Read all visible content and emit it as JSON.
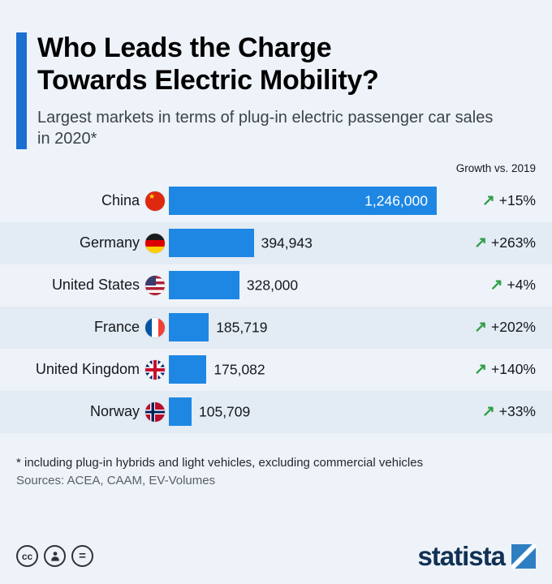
{
  "title_line1": "Who Leads the Charge",
  "title_line2": "Towards Electric Mobility?",
  "subtitle": "Largest markets in terms of plug-in electric passenger car sales in 2020*",
  "growth_header": "Growth vs. 2019",
  "rows": [
    {
      "country": "China",
      "value": "1,246,000",
      "growth": "+15%",
      "flag_icon": "china-flag"
    },
    {
      "country": "Germany",
      "value": "394,943",
      "growth": "+263%",
      "flag_icon": "germany-flag"
    },
    {
      "country": "United States",
      "value": "328,000",
      "growth": "+4%",
      "flag_icon": "us-flag"
    },
    {
      "country": "France",
      "value": "185,719",
      "growth": "+202%",
      "flag_icon": "france-flag"
    },
    {
      "country": "United Kingdom",
      "value": "175,082",
      "growth": "+140%",
      "flag_icon": "uk-flag"
    },
    {
      "country": "Norway",
      "value": "105,709",
      "growth": "+33%",
      "flag_icon": "norway-flag"
    }
  ],
  "icons": {
    "growth_arrow": "↗",
    "cc": "cc",
    "no_derivatives": "="
  },
  "footnote": "* including plug-in hybrids and light vehicles, excluding commercial vehicles",
  "sources": "Sources: ACEA, CAAM, EV-Volumes",
  "brand": {
    "wordmark": "statista"
  },
  "colors": {
    "background": "#eef3f9",
    "row_stripe": "#e3ebf4",
    "bar": "#1e87e4",
    "accent_bar": "#1b6fd1",
    "growth_arrow_green": "#2f9e44",
    "wordmark_navy": "#103154"
  },
  "chart_data": {
    "type": "bar",
    "orientation": "horizontal",
    "title": "Who Leads the Charge Towards Electric Mobility?",
    "subtitle": "Largest markets in terms of plug-in electric passenger car sales in 2020*",
    "categories": [
      "China",
      "Germany",
      "United States",
      "France",
      "United Kingdom",
      "Norway"
    ],
    "values": [
      1246000,
      394943,
      328000,
      185719,
      175082,
      105709
    ],
    "value_labels": [
      "1,246,000",
      "394,943",
      "328,000",
      "185,719",
      "175,082",
      "105,709"
    ],
    "growth_vs_2019": [
      "+15%",
      "+263%",
      "+4%",
      "+202%",
      "+140%",
      "+33%"
    ],
    "xlim": [
      0,
      1246000
    ],
    "legend": "none",
    "grid": false
  }
}
